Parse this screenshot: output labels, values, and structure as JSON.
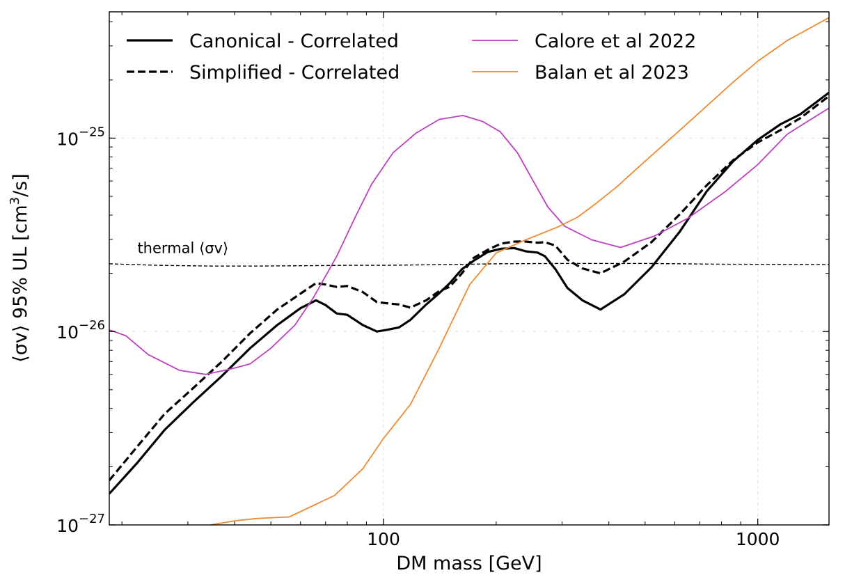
{
  "chart_data": {
    "type": "line",
    "xlabel": "DM mass [GeV]",
    "ylabel_parts": [
      "⟨σv⟩ 95% UL [cm",
      "3",
      "/s]"
    ],
    "x_scale": "log",
    "y_scale": "log",
    "xlim": [
      18.5,
      1550
    ],
    "ylim": [
      1e-27,
      4.5e-25
    ],
    "grid": true,
    "legend_placement": "top-left, two columns",
    "x_ticks": [
      {
        "value": 100,
        "label": "100"
      },
      {
        "value": 1000,
        "label": "1000"
      }
    ],
    "y_ticks": [
      {
        "value": 1e-27,
        "base": "10",
        "exp": "−27"
      },
      {
        "value": 1e-26,
        "base": "10",
        "exp": "−26"
      },
      {
        "value": 1e-25,
        "base": "10",
        "exp": "−25"
      }
    ],
    "series": [
      {
        "name": "Canonical - Correlated",
        "color": "#000000",
        "style": "solid",
        "width": 3.2,
        "x": [
          18.5,
          22,
          26,
          31,
          37,
          44,
          52,
          60,
          66,
          70,
          75,
          80,
          88,
          96,
          102,
          110,
          118,
          130,
          141,
          150,
          162,
          174,
          190,
          206,
          224,
          240,
          258,
          270,
          288,
          310,
          340,
          380,
          440,
          520,
          620,
          730,
          860,
          1000,
          1150,
          1300,
          1550
        ],
        "y": [
          1.45e-27,
          2.1e-27,
          3.1e-27,
          4.3e-27,
          5.9e-27,
          8.2e-27,
          1.08e-26,
          1.32e-26,
          1.45e-26,
          1.37e-26,
          1.24e-26,
          1.22e-26,
          1.08e-26,
          1e-26,
          1.02e-26,
          1.05e-26,
          1.15e-26,
          1.38e-26,
          1.58e-26,
          1.77e-26,
          2.1e-26,
          2.32e-26,
          2.58e-26,
          2.68e-26,
          2.7e-26,
          2.6e-26,
          2.56e-26,
          2.45e-26,
          2.1e-26,
          1.68e-26,
          1.45e-26,
          1.3e-26,
          1.56e-26,
          2.15e-26,
          3.3e-26,
          5.3e-26,
          7.6e-26,
          9.8e-26,
          1.18e-25,
          1.33e-25,
          1.72e-25
        ]
      },
      {
        "name": "Simplified - Correlated",
        "color": "#000000",
        "style": "dashed",
        "width": 3.2,
        "x": [
          18.5,
          22,
          26,
          31,
          37,
          44,
          52,
          60,
          66,
          70,
          75,
          80,
          88,
          96,
          102,
          110,
          118,
          130,
          141,
          150,
          162,
          174,
          190,
          206,
          224,
          240,
          258,
          270,
          288,
          310,
          340,
          380,
          440,
          520,
          620,
          730,
          860,
          1000,
          1150,
          1300,
          1550
        ],
        "y": [
          1.7e-27,
          2.55e-27,
          3.75e-27,
          5.1e-27,
          7e-27,
          9.8e-27,
          1.3e-26,
          1.57e-26,
          1.78e-26,
          1.75e-26,
          1.7e-26,
          1.72e-26,
          1.6e-26,
          1.42e-26,
          1.4e-26,
          1.38e-26,
          1.33e-26,
          1.45e-26,
          1.62e-26,
          1.7e-26,
          2e-26,
          2.4e-26,
          2.65e-26,
          2.85e-26,
          2.92e-26,
          2.92e-26,
          2.88e-26,
          2.9e-26,
          2.78e-26,
          2.35e-26,
          2.12e-26,
          2e-26,
          2.3e-26,
          2.9e-26,
          4.05e-26,
          5.7e-26,
          7.7e-26,
          9.5e-26,
          1.1e-25,
          1.27e-25,
          1.65e-25
        ]
      },
      {
        "name": "Calore et al 2022",
        "color": "#bf40bf",
        "style": "solid",
        "width": 1.8,
        "x": [
          18.5,
          20.5,
          23.5,
          28.5,
          33.5,
          39,
          44,
          50,
          58,
          65,
          75,
          84,
          93,
          106,
          122,
          141,
          163,
          184,
          205,
          228,
          250,
          275,
          305,
          360,
          430,
          530,
          650,
          820,
          1000,
          1200,
          1550
        ],
        "y": [
          1.02e-26,
          9.5e-27,
          7.6e-27,
          6.3e-27,
          6e-27,
          6.4e-27,
          6.8e-27,
          8.2e-27,
          1.08e-26,
          1.5e-26,
          2.45e-26,
          3.9e-26,
          5.8e-26,
          8.4e-26,
          1.06e-25,
          1.25e-25,
          1.31e-25,
          1.22e-25,
          1.08e-25,
          8.4e-26,
          6.1e-26,
          4.4e-26,
          3.5e-26,
          2.98e-26,
          2.72e-26,
          3.12e-26,
          3.85e-26,
          5.3e-26,
          7.3e-26,
          1.05e-25,
          1.43e-25
        ]
      },
      {
        "name": "Balan et al 2023",
        "color": "#f08a30",
        "style": "solid",
        "width": 1.8,
        "x": [
          34.5,
          40,
          46,
          56,
          74,
          88,
          100,
          118,
          140,
          170,
          200,
          240,
          290,
          330,
          370,
          420,
          500,
          600,
          720,
          860,
          1000,
          1200,
          1550
        ],
        "y": [
          1e-27,
          1.05e-27,
          1.08e-27,
          1.1e-27,
          1.42e-27,
          1.95e-27,
          2.8e-27,
          4.2e-27,
          8e-27,
          1.75e-26,
          2.55e-26,
          2.98e-26,
          3.45e-26,
          3.9e-26,
          4.6e-26,
          5.6e-26,
          7.6e-26,
          1.04e-25,
          1.43e-25,
          1.95e-25,
          2.5e-25,
          3.2e-25,
          4.2e-25
        ]
      },
      {
        "name": "",
        "color": "#000000",
        "style": "thin-dashed",
        "width": 1.4,
        "x": [
          18.5,
          25,
          35,
          45,
          60,
          80,
          100,
          150,
          200,
          300,
          500,
          800,
          1550
        ],
        "y": [
          2.24e-26,
          2.2e-26,
          2.18e-26,
          2.18e-26,
          2.19e-26,
          2.2e-26,
          2.2e-26,
          2.22e-26,
          2.24e-26,
          2.25e-26,
          2.25e-26,
          2.23e-26,
          2.22e-26
        ]
      }
    ],
    "annotations": [
      {
        "text": "thermal ⟨σv⟩",
        "x": 22,
        "y": 2.55e-26
      }
    ]
  }
}
